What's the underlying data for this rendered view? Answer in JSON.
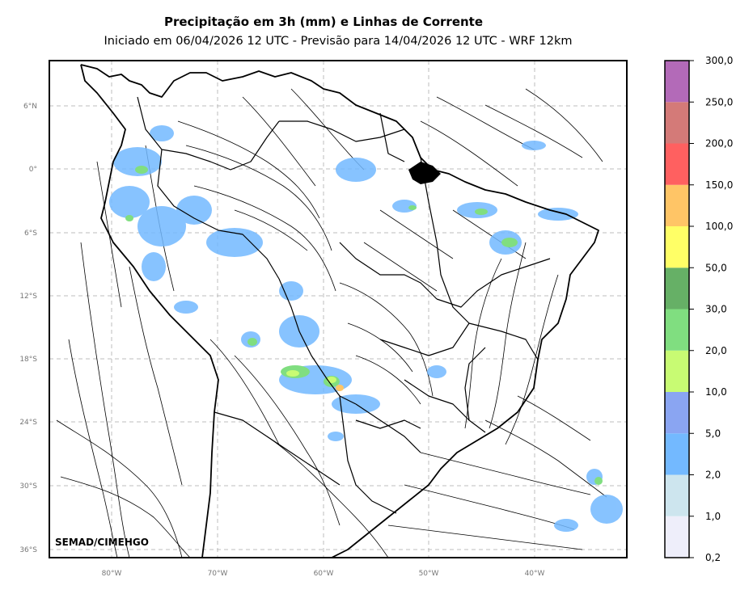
{
  "title": "Precipitação em 3h (mm) e Linhas de Corrente",
  "subtitle": "Iniciado em 06/04/2026 12 UTC - Previsão para 14/04/2026 12 UTC - WRF 12km",
  "credit": "SEMAD/CIMEHGO",
  "lat_labels": [
    "6°N",
    "0°",
    "6°S",
    "12°S",
    "18°S",
    "24°S",
    "30°S",
    "36°S"
  ],
  "lon_labels": [
    "80°W",
    "70°W",
    "60°W",
    "50°W",
    "40°W"
  ],
  "colorbar": {
    "labels": [
      "0,2",
      "1,0",
      "2,0",
      "5,0",
      "10,0",
      "20,0",
      "30,0",
      "50,0",
      "100,0",
      "150,0",
      "200,0",
      "250,0",
      "300,0"
    ],
    "colors": [
      "#eeeefa",
      "#cde5ee",
      "#73b9ff",
      "#8aa5f2",
      "#c8fb73",
      "#80de80",
      "#66b066",
      "#ffff66",
      "#ffc566",
      "#ff6060",
      "#d47a78",
      "#b36ab8"
    ]
  }
}
